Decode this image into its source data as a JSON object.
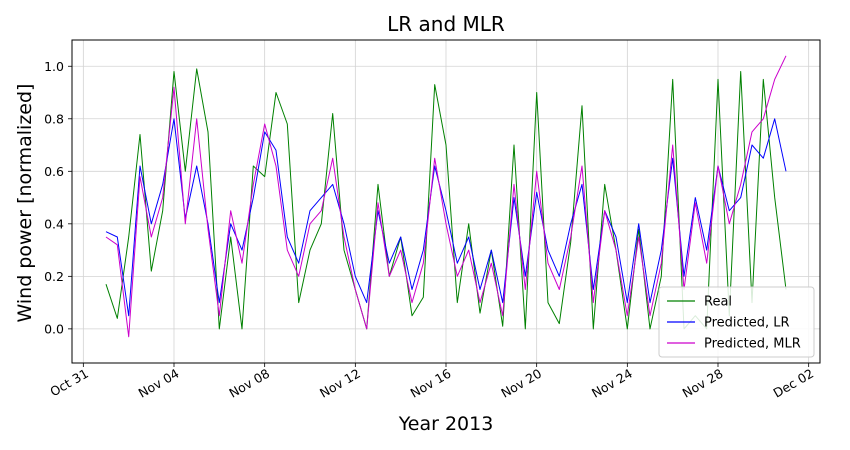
{
  "chart_data": {
    "type": "line",
    "title": "LR and MLR",
    "xlabel": "Year 2013",
    "ylabel": "Wind power [normalized]",
    "x_axis": "date",
    "xlim": [
      "2013-10-30T12:00",
      "2013-12-02T12:00"
    ],
    "ylim": [
      -0.13,
      1.1
    ],
    "xticks": [
      {
        "date": "2013-10-31",
        "label": "Oct 31"
      },
      {
        "date": "2013-11-04",
        "label": "Nov 04"
      },
      {
        "date": "2013-11-08",
        "label": "Nov 08"
      },
      {
        "date": "2013-11-12",
        "label": "Nov 12"
      },
      {
        "date": "2013-11-16",
        "label": "Nov 16"
      },
      {
        "date": "2013-11-20",
        "label": "Nov 20"
      },
      {
        "date": "2013-11-24",
        "label": "Nov 24"
      },
      {
        "date": "2013-11-28",
        "label": "Nov 28"
      },
      {
        "date": "2013-12-02",
        "label": "Dec 02"
      }
    ],
    "yticks": [
      {
        "value": 0.0,
        "label": "0.0"
      },
      {
        "value": 0.2,
        "label": "0.2"
      },
      {
        "value": 0.4,
        "label": "0.4"
      },
      {
        "value": 0.6,
        "label": "0.6"
      },
      {
        "value": 0.8,
        "label": "0.8"
      },
      {
        "value": 1.0,
        "label": "1.0"
      }
    ],
    "grid": true,
    "legend_position": "bottom-right",
    "series": [
      {
        "name": "Real",
        "color": "#008000",
        "x": [
          "2013-11-01T00:00",
          "2013-11-01T12:00",
          "2013-11-02T00:00",
          "2013-11-02T12:00",
          "2013-11-03T00:00",
          "2013-11-03T12:00",
          "2013-11-04T00:00",
          "2013-11-04T12:00",
          "2013-11-05T00:00",
          "2013-11-05T12:00",
          "2013-11-06T00:00",
          "2013-11-06T12:00",
          "2013-11-07T00:00",
          "2013-11-07T12:00",
          "2013-11-08T00:00",
          "2013-11-08T12:00",
          "2013-11-09T00:00",
          "2013-11-09T12:00",
          "2013-11-10T00:00",
          "2013-11-10T12:00",
          "2013-11-11T00:00",
          "2013-11-11T12:00",
          "2013-11-12T00:00",
          "2013-11-12T12:00",
          "2013-11-13T00:00",
          "2013-11-13T12:00",
          "2013-11-14T00:00",
          "2013-11-14T12:00",
          "2013-11-15T00:00",
          "2013-11-15T12:00",
          "2013-11-16T00:00",
          "2013-11-16T12:00",
          "2013-11-17T00:00",
          "2013-11-17T12:00",
          "2013-11-18T00:00",
          "2013-11-18T12:00",
          "2013-11-19T00:00",
          "2013-11-19T12:00",
          "2013-11-20T00:00",
          "2013-11-20T12:00",
          "2013-11-21T00:00",
          "2013-11-21T12:00",
          "2013-11-22T00:00",
          "2013-11-22T12:00",
          "2013-11-23T00:00",
          "2013-11-23T12:00",
          "2013-11-24T00:00",
          "2013-11-24T12:00",
          "2013-11-25T00:00",
          "2013-11-25T12:00",
          "2013-11-26T00:00",
          "2013-11-26T12:00",
          "2013-11-27T00:00",
          "2013-11-27T12:00",
          "2013-11-28T00:00",
          "2013-11-28T12:00",
          "2013-11-29T00:00",
          "2013-11-29T12:00",
          "2013-11-30T00:00",
          "2013-11-30T12:00",
          "2013-12-01T00:00"
        ],
        "y": [
          0.17,
          0.04,
          0.35,
          0.74,
          0.22,
          0.45,
          0.98,
          0.6,
          0.99,
          0.75,
          0.0,
          0.35,
          0.0,
          0.62,
          0.58,
          0.9,
          0.78,
          0.1,
          0.3,
          0.4,
          0.82,
          0.3,
          0.15,
          0.0,
          0.55,
          0.2,
          0.35,
          0.05,
          0.12,
          0.93,
          0.7,
          0.1,
          0.4,
          0.06,
          0.3,
          0.01,
          0.7,
          0.0,
          0.9,
          0.1,
          0.02,
          0.33,
          0.85,
          0.0,
          0.55,
          0.3,
          0.0,
          0.38,
          0.0,
          0.2,
          0.95,
          0.0,
          0.05,
          0.0,
          0.95,
          0.05,
          0.98,
          0.1,
          0.95,
          0.5,
          0.15
        ]
      },
      {
        "name": "Predicted, LR",
        "color": "#0000ff",
        "x": [
          "2013-11-01T00:00",
          "2013-11-01T12:00",
          "2013-11-02T00:00",
          "2013-11-02T12:00",
          "2013-11-03T00:00",
          "2013-11-03T12:00",
          "2013-11-04T00:00",
          "2013-11-04T12:00",
          "2013-11-05T00:00",
          "2013-11-05T12:00",
          "2013-11-06T00:00",
          "2013-11-06T12:00",
          "2013-11-07T00:00",
          "2013-11-07T12:00",
          "2013-11-08T00:00",
          "2013-11-08T12:00",
          "2013-11-09T00:00",
          "2013-11-09T12:00",
          "2013-11-10T00:00",
          "2013-11-10T12:00",
          "2013-11-11T00:00",
          "2013-11-11T12:00",
          "2013-11-12T00:00",
          "2013-11-12T12:00",
          "2013-11-13T00:00",
          "2013-11-13T12:00",
          "2013-11-14T00:00",
          "2013-11-14T12:00",
          "2013-11-15T00:00",
          "2013-11-15T12:00",
          "2013-11-16T00:00",
          "2013-11-16T12:00",
          "2013-11-17T00:00",
          "2013-11-17T12:00",
          "2013-11-18T00:00",
          "2013-11-18T12:00",
          "2013-11-19T00:00",
          "2013-11-19T12:00",
          "2013-11-20T00:00",
          "2013-11-20T12:00",
          "2013-11-21T00:00",
          "2013-11-21T12:00",
          "2013-11-22T00:00",
          "2013-11-22T12:00",
          "2013-11-23T00:00",
          "2013-11-23T12:00",
          "2013-11-24T00:00",
          "2013-11-24T12:00",
          "2013-11-25T00:00",
          "2013-11-25T12:00",
          "2013-11-26T00:00",
          "2013-11-26T12:00",
          "2013-11-27T00:00",
          "2013-11-27T12:00",
          "2013-11-28T00:00",
          "2013-11-28T12:00",
          "2013-11-29T00:00",
          "2013-11-29T12:00",
          "2013-11-30T00:00",
          "2013-11-30T12:00",
          "2013-12-01T00:00"
        ],
        "y": [
          0.37,
          0.35,
          0.05,
          0.62,
          0.4,
          0.55,
          0.8,
          0.42,
          0.62,
          0.4,
          0.1,
          0.4,
          0.3,
          0.5,
          0.75,
          0.68,
          0.35,
          0.25,
          0.45,
          0.5,
          0.55,
          0.4,
          0.2,
          0.1,
          0.45,
          0.25,
          0.35,
          0.15,
          0.3,
          0.62,
          0.45,
          0.25,
          0.35,
          0.15,
          0.3,
          0.1,
          0.5,
          0.2,
          0.52,
          0.3,
          0.2,
          0.4,
          0.55,
          0.15,
          0.45,
          0.35,
          0.1,
          0.4,
          0.1,
          0.3,
          0.65,
          0.2,
          0.5,
          0.3,
          0.62,
          0.45,
          0.5,
          0.7,
          0.65,
          0.8,
          0.6
        ]
      },
      {
        "name": "Predicted, MLR",
        "color": "#cc00cc",
        "x": [
          "2013-11-01T00:00",
          "2013-11-01T12:00",
          "2013-11-02T00:00",
          "2013-11-02T12:00",
          "2013-11-03T00:00",
          "2013-11-03T12:00",
          "2013-11-04T00:00",
          "2013-11-04T12:00",
          "2013-11-05T00:00",
          "2013-11-05T12:00",
          "2013-11-06T00:00",
          "2013-11-06T12:00",
          "2013-11-07T00:00",
          "2013-11-07T12:00",
          "2013-11-08T00:00",
          "2013-11-08T12:00",
          "2013-11-09T00:00",
          "2013-11-09T12:00",
          "2013-11-10T00:00",
          "2013-11-10T12:00",
          "2013-11-11T00:00",
          "2013-11-11T12:00",
          "2013-11-12T00:00",
          "2013-11-12T12:00",
          "2013-11-13T00:00",
          "2013-11-13T12:00",
          "2013-11-14T00:00",
          "2013-11-14T12:00",
          "2013-11-15T00:00",
          "2013-11-15T12:00",
          "2013-11-16T00:00",
          "2013-11-16T12:00",
          "2013-11-17T00:00",
          "2013-11-17T12:00",
          "2013-11-18T00:00",
          "2013-11-18T12:00",
          "2013-11-19T00:00",
          "2013-11-19T12:00",
          "2013-11-20T00:00",
          "2013-11-20T12:00",
          "2013-11-21T00:00",
          "2013-11-21T12:00",
          "2013-11-22T00:00",
          "2013-11-22T12:00",
          "2013-11-23T00:00",
          "2013-11-23T12:00",
          "2013-11-24T00:00",
          "2013-11-24T12:00",
          "2013-11-25T00:00",
          "2013-11-25T12:00",
          "2013-11-26T00:00",
          "2013-11-26T12:00",
          "2013-11-27T00:00",
          "2013-11-27T12:00",
          "2013-11-28T00:00",
          "2013-11-28T12:00",
          "2013-11-29T00:00",
          "2013-11-29T12:00",
          "2013-11-30T00:00",
          "2013-11-30T12:00",
          "2013-12-01T00:00"
        ],
        "y": [
          0.35,
          0.32,
          -0.03,
          0.58,
          0.35,
          0.5,
          0.92,
          0.4,
          0.8,
          0.38,
          0.05,
          0.45,
          0.25,
          0.55,
          0.78,
          0.62,
          0.3,
          0.2,
          0.4,
          0.45,
          0.65,
          0.35,
          0.15,
          0.0,
          0.48,
          0.2,
          0.3,
          0.1,
          0.25,
          0.65,
          0.4,
          0.2,
          0.3,
          0.1,
          0.25,
          0.05,
          0.55,
          0.15,
          0.6,
          0.25,
          0.15,
          0.35,
          0.62,
          0.1,
          0.45,
          0.3,
          0.05,
          0.35,
          0.05,
          0.25,
          0.7,
          0.15,
          0.48,
          0.25,
          0.62,
          0.4,
          0.55,
          0.75,
          0.8,
          0.95,
          1.04
        ]
      }
    ]
  }
}
